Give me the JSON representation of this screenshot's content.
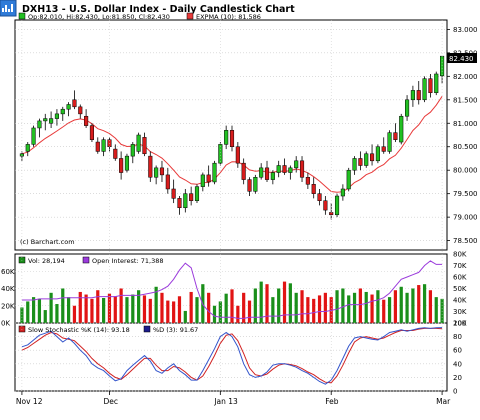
{
  "colors": {
    "up": "#22c022",
    "down": "#d81c1c",
    "ema": "#e83a3a",
    "frame": "#000000",
    "grid": "#c8c8c8",
    "vol_up": "#1a8f1a",
    "vol_down": "#e11414",
    "oi": "#9b3bdc",
    "stoch_k": "#3355cc",
    "stoch_d": "#d22222",
    "header_bg": "#ffffff"
  },
  "chart_data": [
    {
      "type": "candlestick",
      "title": "DXH13 - U.S. Dollar Index - Daily Candlestick Chart",
      "legend": [
        "Op:82.010, Hi:82.430, Lo:81.850, Cl:82.430",
        "EXPMA (10): 81.586"
      ],
      "watermark": "(c) Barchart.com",
      "last_price_label": "82.430",
      "ylim": [
        78.3,
        83.2
      ],
      "yticks": [
        "78.500",
        "79.000",
        "79.500",
        "80.000",
        "80.500",
        "81.000",
        "81.500",
        "82.000",
        "82.500",
        "83.000"
      ],
      "xticks": [
        {
          "label": "Nov 12",
          "i": 0
        },
        {
          "label": "Dec",
          "i": 15
        },
        {
          "label": "Jan 13",
          "i": 34
        },
        {
          "label": "Feb",
          "i": 53
        },
        {
          "label": "Mar",
          "i": 72
        }
      ],
      "ohlc": [
        [
          80.3,
          80.4,
          80.2,
          80.35
        ],
        [
          80.4,
          80.6,
          80.3,
          80.55
        ],
        [
          80.55,
          80.95,
          80.5,
          80.9
        ],
        [
          80.9,
          81.1,
          80.7,
          81.05
        ],
        [
          81.05,
          81.2,
          80.85,
          81.1
        ],
        [
          81.0,
          81.25,
          80.9,
          81.1
        ],
        [
          81.1,
          81.3,
          80.95,
          81.2
        ],
        [
          81.2,
          81.35,
          81.05,
          81.3
        ],
        [
          81.3,
          81.45,
          81.15,
          81.4
        ],
        [
          81.5,
          81.7,
          81.3,
          81.35
        ],
        [
          81.35,
          81.4,
          81.1,
          81.2
        ],
        [
          81.15,
          81.3,
          80.9,
          80.95
        ],
        [
          80.95,
          81.0,
          80.6,
          80.65
        ],
        [
          80.6,
          80.7,
          80.35,
          80.4
        ],
        [
          80.4,
          80.7,
          80.3,
          80.65
        ],
        [
          80.65,
          80.7,
          80.4,
          80.5
        ],
        [
          80.45,
          80.55,
          80.2,
          80.25
        ],
        [
          80.25,
          80.4,
          79.8,
          79.95
        ],
        [
          80.0,
          80.35,
          79.95,
          80.3
        ],
        [
          80.3,
          80.6,
          80.15,
          80.55
        ],
        [
          80.4,
          80.8,
          80.35,
          80.75
        ],
        [
          80.7,
          80.8,
          80.3,
          80.35
        ],
        [
          80.3,
          80.4,
          79.75,
          79.85
        ],
        [
          79.85,
          80.1,
          79.7,
          80.05
        ],
        [
          80.05,
          80.2,
          79.75,
          79.9
        ],
        [
          79.9,
          80.05,
          79.5,
          79.6
        ],
        [
          79.6,
          79.8,
          79.3,
          79.4
        ],
        [
          79.4,
          79.45,
          79.05,
          79.2
        ],
        [
          79.2,
          79.6,
          79.1,
          79.5
        ],
        [
          79.5,
          79.65,
          79.25,
          79.35
        ],
        [
          79.35,
          79.7,
          79.3,
          79.65
        ],
        [
          79.65,
          79.95,
          79.55,
          79.9
        ],
        [
          79.9,
          80.1,
          79.65,
          79.75
        ],
        [
          79.75,
          80.2,
          79.7,
          80.15
        ],
        [
          80.15,
          80.6,
          80.1,
          80.55
        ],
        [
          80.55,
          80.95,
          80.45,
          80.85
        ],
        [
          80.85,
          80.95,
          80.4,
          80.5
        ],
        [
          80.5,
          80.6,
          80.05,
          80.15
        ],
        [
          80.15,
          80.25,
          79.7,
          79.8
        ],
        [
          79.8,
          79.85,
          79.45,
          79.55
        ],
        [
          79.55,
          79.9,
          79.5,
          79.85
        ],
        [
          79.85,
          80.15,
          79.8,
          80.05
        ],
        [
          80.05,
          80.2,
          79.75,
          79.8
        ],
        [
          79.8,
          80.0,
          79.7,
          79.95
        ],
        [
          79.95,
          80.2,
          79.85,
          80.1
        ],
        [
          80.1,
          80.25,
          79.9,
          79.95
        ],
        [
          79.95,
          80.1,
          79.8,
          80.05
        ],
        [
          80.05,
          80.3,
          79.95,
          80.2
        ],
        [
          80.2,
          80.3,
          79.75,
          79.85
        ],
        [
          79.85,
          79.95,
          79.6,
          79.7
        ],
        [
          79.7,
          79.85,
          79.4,
          79.5
        ],
        [
          79.5,
          79.6,
          79.25,
          79.35
        ],
        [
          79.35,
          79.45,
          79.05,
          79.15
        ],
        [
          79.1,
          79.3,
          78.95,
          79.05
        ],
        [
          79.05,
          79.5,
          79.0,
          79.45
        ],
        [
          79.45,
          79.7,
          79.35,
          79.6
        ],
        [
          79.6,
          80.05,
          79.55,
          80.0
        ],
        [
          80.0,
          80.3,
          79.9,
          80.25
        ],
        [
          80.25,
          80.4,
          80.0,
          80.1
        ],
        [
          80.1,
          80.4,
          80.05,
          80.35
        ],
        [
          80.35,
          80.55,
          80.1,
          80.2
        ],
        [
          80.2,
          80.55,
          80.15,
          80.5
        ],
        [
          80.5,
          80.7,
          80.35,
          80.4
        ],
        [
          80.4,
          80.85,
          80.35,
          80.8
        ],
        [
          80.8,
          81.0,
          80.6,
          80.65
        ],
        [
          80.6,
          81.2,
          80.55,
          81.15
        ],
        [
          81.15,
          81.6,
          81.05,
          81.5
        ],
        [
          81.5,
          81.8,
          81.35,
          81.7
        ],
        [
          81.7,
          81.9,
          81.4,
          81.5
        ],
        [
          81.5,
          82.0,
          81.45,
          81.95
        ],
        [
          81.95,
          82.05,
          81.55,
          81.65
        ],
        [
          81.65,
          82.1,
          81.6,
          82.05
        ],
        [
          82.01,
          82.43,
          81.85,
          82.43
        ]
      ]
    },
    {
      "type": "bar",
      "legend": [
        "Vol: 28,194",
        "Open Interest: 71,388"
      ],
      "yticks_left": [
        "0K",
        "20K",
        "40K",
        "60K"
      ],
      "yticks_right": [
        "20K",
        "30K",
        "40K",
        "50K",
        "60K",
        "70K",
        "80K"
      ],
      "volume_k": [
        18,
        25,
        30,
        28,
        15,
        35,
        22,
        40,
        30,
        20,
        36,
        33,
        28,
        38,
        29,
        34,
        31,
        40,
        30,
        33,
        38,
        32,
        28,
        42,
        35,
        26,
        25,
        31,
        14,
        36,
        30,
        45,
        35,
        20,
        25,
        34,
        39,
        20,
        35,
        26,
        40,
        48,
        45,
        30,
        40,
        48,
        46,
        35,
        38,
        30,
        28,
        32,
        35,
        30,
        38,
        40,
        32,
        35,
        40,
        36,
        33,
        38,
        27,
        30,
        38,
        42,
        35,
        40,
        44,
        45,
        38,
        30,
        28
      ],
      "open_interest_k": [
        40,
        40,
        40,
        41,
        41,
        41,
        41,
        42,
        42,
        42,
        42,
        42,
        42,
        43,
        43,
        43,
        43,
        44,
        44,
        44,
        44,
        45,
        46,
        47,
        49,
        52,
        58,
        66,
        72,
        68,
        50,
        36,
        30,
        26,
        25,
        25,
        25,
        24,
        24,
        25,
        25,
        25,
        26,
        26,
        26,
        27,
        27,
        27,
        28,
        28,
        29,
        30,
        30,
        31,
        32,
        34,
        36,
        36,
        36,
        37,
        39,
        40,
        42,
        46,
        52,
        58,
        60,
        62,
        64,
        70,
        74,
        71,
        71
      ]
    },
    {
      "type": "line",
      "legend": [
        "Slow Stochastic %K (14): 93.18",
        "%D (3): 91.67"
      ],
      "ylim": [
        0,
        100
      ],
      "yticks": [
        "0",
        "20",
        "40",
        "60",
        "80",
        "100"
      ],
      "k": [
        65,
        68,
        75,
        82,
        85,
        88,
        80,
        72,
        78,
        70,
        60,
        52,
        40,
        34,
        30,
        22,
        15,
        18,
        30,
        38,
        45,
        52,
        44,
        30,
        26,
        34,
        40,
        30,
        24,
        16,
        16,
        30,
        46,
        62,
        80,
        86,
        80,
        65,
        40,
        24,
        20,
        22,
        28,
        38,
        40,
        40,
        38,
        35,
        30,
        26,
        20,
        14,
        10,
        16,
        30,
        48,
        66,
        78,
        80,
        78,
        76,
        75,
        80,
        86,
        88,
        90,
        88,
        90,
        92,
        93,
        92,
        93,
        93.18
      ],
      "d": [
        60,
        64,
        70,
        76,
        82,
        86,
        84,
        78,
        76,
        74,
        66,
        58,
        48,
        40,
        34,
        26,
        20,
        17,
        24,
        32,
        40,
        48,
        48,
        38,
        30,
        30,
        36,
        34,
        28,
        20,
        16,
        22,
        36,
        52,
        70,
        82,
        84,
        74,
        55,
        34,
        24,
        22,
        25,
        32,
        38,
        40,
        39,
        37,
        33,
        28,
        24,
        18,
        13,
        12,
        22,
        38,
        56,
        72,
        78,
        80,
        78,
        76,
        78,
        82,
        86,
        89,
        89,
        89,
        91,
        92,
        92,
        92,
        91.67
      ]
    }
  ]
}
